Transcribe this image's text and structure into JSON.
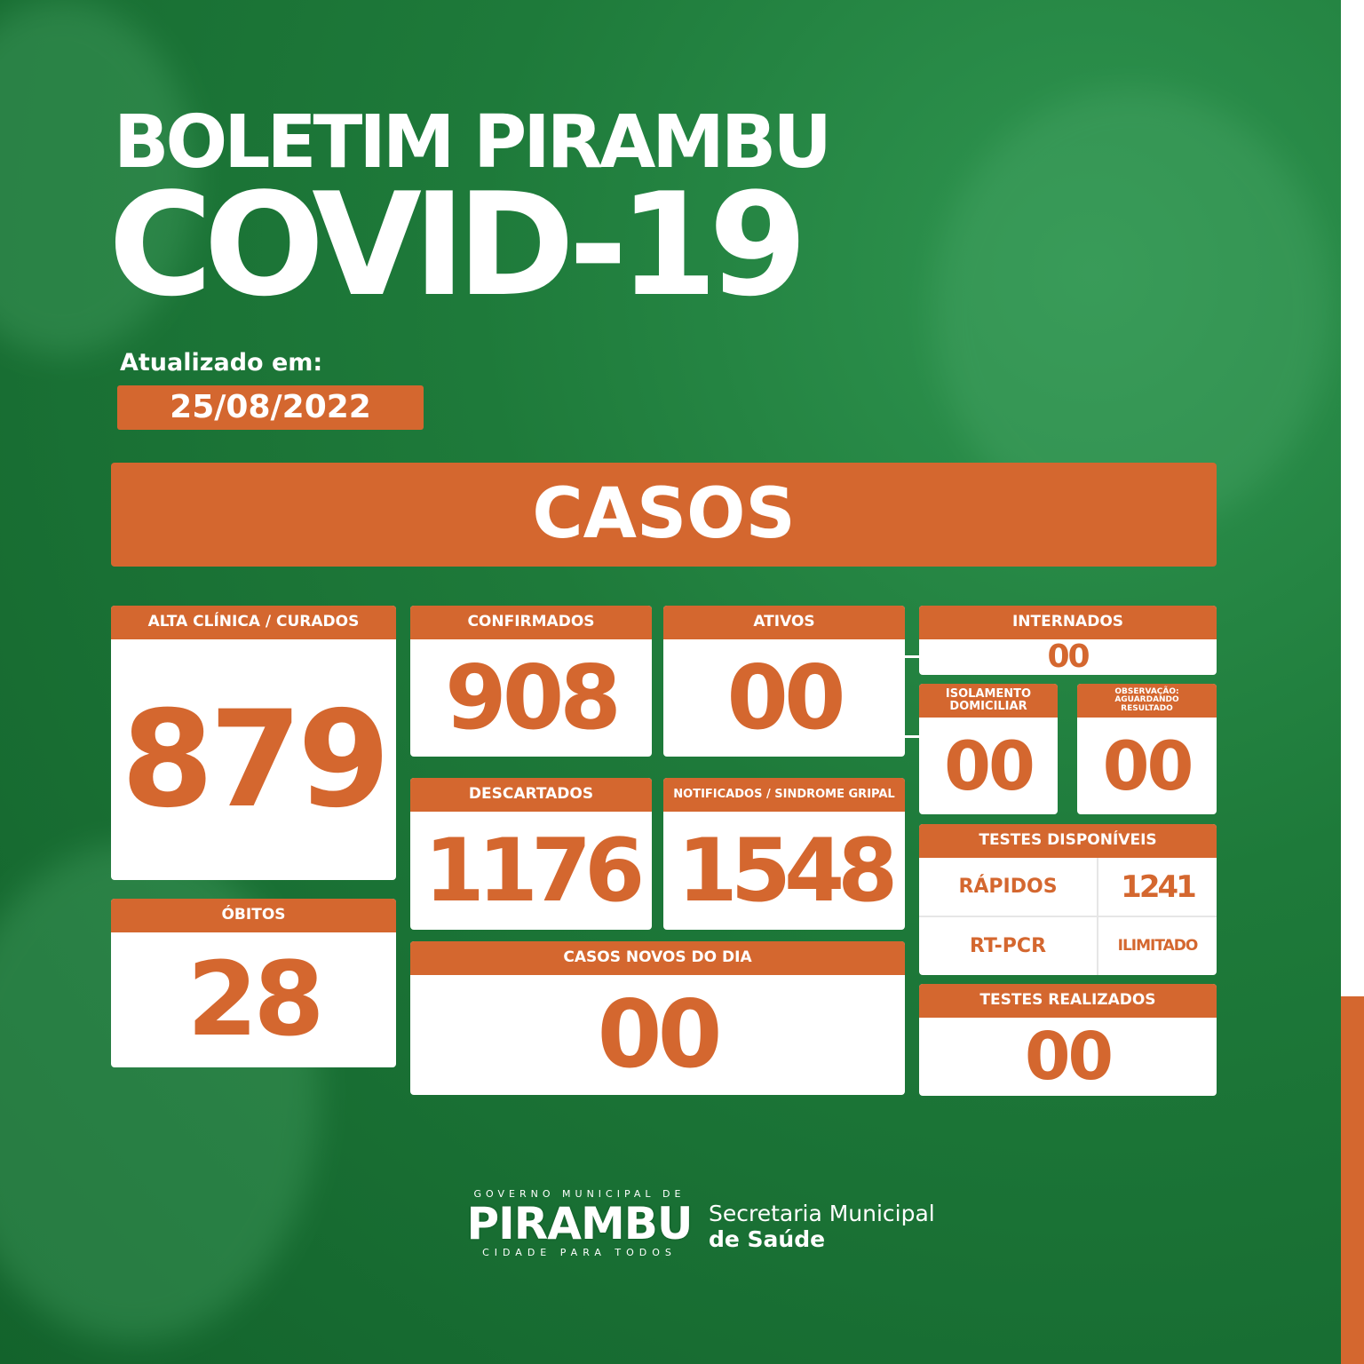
{
  "header": {
    "title_light": "BOLETIM",
    "title_bold": "PIRAMBU",
    "subtitle": "COVID-19",
    "updated_label": "Atualizado em:",
    "updated_date": "25/08/2022"
  },
  "section": "CASOS",
  "cards": {
    "curados": {
      "label": "ALTA CLÍNICA / CURADOS",
      "value": "879"
    },
    "obitos": {
      "label": "ÓBITOS",
      "value": "28"
    },
    "confirmados": {
      "label": "CONFIRMADOS",
      "value": "908"
    },
    "ativos": {
      "label": "ATIVOS",
      "value": "00"
    },
    "descartados": {
      "label": "DESCARTADOS",
      "value": "1176"
    },
    "notificados": {
      "label": "NOTIFICADOS / SINDROME GRIPAL",
      "value": "1548"
    },
    "novos": {
      "label": "CASOS NOVOS DO DIA",
      "value": "00"
    },
    "internados": {
      "label": "INTERNADOS",
      "value": "00"
    },
    "isolamento": {
      "label": "ISOLAMENTO DOMICILIAR",
      "value": "00"
    },
    "observacao": {
      "label": "OBSERVAÇÃO: AGUARDANDO RESULTADO",
      "value": "00"
    },
    "testes_disp": {
      "label": "TESTES DISPONÍVEIS",
      "rapidos_label": "RÁPIDOS",
      "rapidos_value": "1241",
      "rtpcr_label": "RT-PCR",
      "rtpcr_value": "ILIMITADO"
    },
    "testes_real": {
      "label": "TESTES REALIZADOS",
      "value": "00"
    }
  },
  "footer": {
    "logo_top": "GOVERNO MUNICIPAL DE",
    "logo_main": "PIRAMBU",
    "logo_bottom": "CIDADE PARA TODOS",
    "org_line1": "Secretaria Municipal",
    "org_line2": "de Saúde"
  },
  "colors": {
    "orange": "#d4672f",
    "green": "#1e7a3a"
  }
}
